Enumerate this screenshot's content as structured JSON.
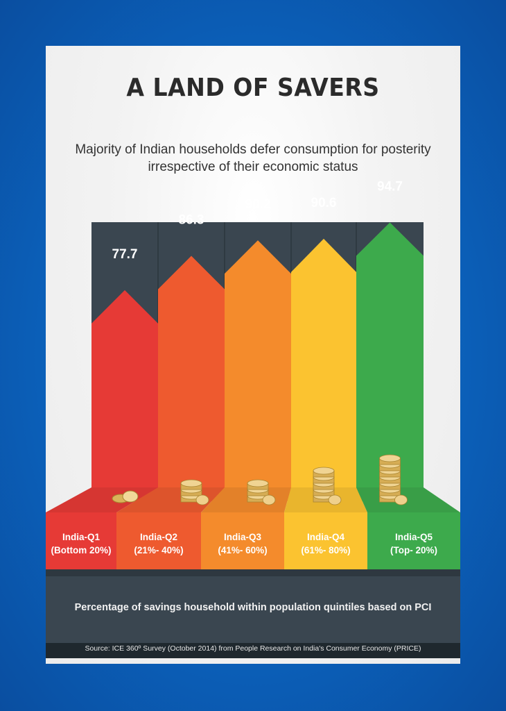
{
  "title": "A LAND OF SAVERS",
  "subtitle": "Majority of Indian households defer consumption for posterity irrespective of their economic status",
  "footnote": "Percentage of savings household within population quintiles based on PCI",
  "source": "Source: ICE 360º Survey (October 2014) from People Research on India's Consumer Economy (PRICE)",
  "colors": {
    "background": "#0b5fb8",
    "panel": "#3a4650",
    "q1": "#e63a36",
    "q2": "#ee5a2f",
    "q3": "#f48b2c",
    "q4": "#fbc330",
    "q5": "#3daa4c"
  },
  "chart_data": {
    "type": "bar",
    "categories": [
      "India-Q1",
      "India-Q2",
      "India-Q3",
      "India-Q4",
      "India-Q5"
    ],
    "sublabels": [
      "(Bottom 20%)",
      "(21%- 40%)",
      "(41%- 60%)",
      "(61%- 80%)",
      "(Top- 20%)"
    ],
    "values": [
      77.7,
      86.3,
      90.2,
      90.6,
      94.7
    ],
    "value_labels": [
      "77.7",
      "86.3",
      "90.2",
      "90.6",
      "94.7"
    ],
    "icons": [
      "coin-stack-icon",
      "coin-stack-icon",
      "coin-stack-icon",
      "coin-stack-icon",
      "coin-stack-icon"
    ]
  }
}
